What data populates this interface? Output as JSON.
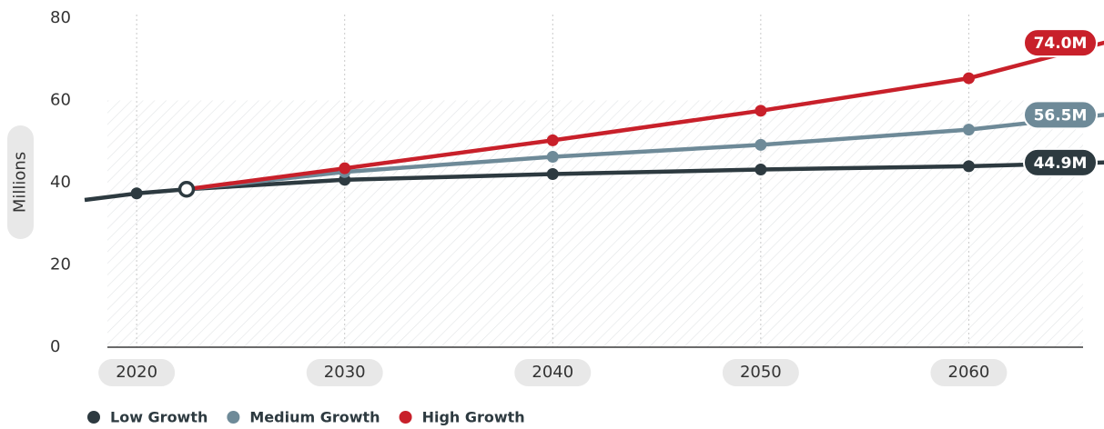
{
  "chart_data": {
    "type": "line",
    "ylabel": "Millions",
    "xlabel": "",
    "ylim": [
      0,
      80
    ],
    "xlim": [
      2017.5,
      2066.5
    ],
    "yticks": [
      0,
      20,
      40,
      60,
      80
    ],
    "xticks": [
      2020,
      2030,
      2040,
      2050,
      2060
    ],
    "grid": "vertical dotted lines at x ticks; hatched band up to 60",
    "legend_position": "bottom-left",
    "history": {
      "name": "",
      "color": "#2d3a40",
      "points": [
        [
          2017.5,
          35.8
        ],
        [
          2020,
          37.4
        ],
        [
          2022.4,
          38.4
        ]
      ]
    },
    "current": {
      "x": 2022.4,
      "y": 38.4
    },
    "series": [
      {
        "name": "Low Growth",
        "color": "#2d3a40",
        "end_label": "44.9M",
        "points": [
          [
            2022.4,
            38.4
          ],
          [
            2030,
            40.7
          ],
          [
            2040,
            42.1
          ],
          [
            2050,
            43.2
          ],
          [
            2060,
            44.0
          ],
          [
            2066.5,
            44.9
          ]
        ],
        "marked_x": [
          2030,
          2040,
          2050,
          2060
        ]
      },
      {
        "name": "Medium Growth",
        "color": "#6e8a98",
        "end_label": "56.5M",
        "points": [
          [
            2022.4,
            38.4
          ],
          [
            2030,
            42.6
          ],
          [
            2040,
            46.3
          ],
          [
            2050,
            49.2
          ],
          [
            2060,
            52.9
          ],
          [
            2066.5,
            56.5
          ]
        ],
        "marked_x": [
          2030,
          2040,
          2050,
          2060
        ]
      },
      {
        "name": "High Growth",
        "color": "#c8202a",
        "end_label": "74.0M",
        "points": [
          [
            2022.4,
            38.4
          ],
          [
            2030,
            43.5
          ],
          [
            2040,
            50.3
          ],
          [
            2050,
            57.5
          ],
          [
            2060,
            65.4
          ],
          [
            2066.5,
            74.0
          ]
        ],
        "marked_x": [
          2030,
          2040,
          2050,
          2060
        ]
      }
    ]
  }
}
